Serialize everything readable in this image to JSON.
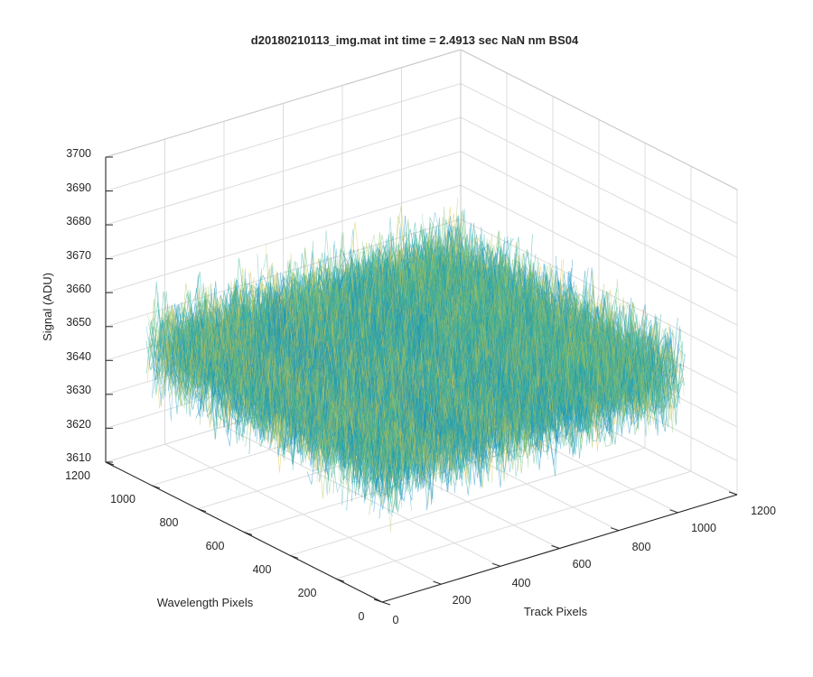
{
  "chart_data": {
    "type": "surface",
    "title": "d20180210113_img.mat int time = 2.4913 sec  NaN nm BS04",
    "xlabel": "Track Pixels",
    "ylabel": "Wavelength Pixels",
    "zlabel": "Signal (ADU)",
    "xlim": [
      0,
      1200
    ],
    "ylim": [
      0,
      1200
    ],
    "zlim": [
      3610,
      3700
    ],
    "x_ticks": [
      "0",
      "200",
      "400",
      "600",
      "800",
      "1000",
      "1200"
    ],
    "y_ticks": [
      "0",
      "200",
      "400",
      "600",
      "800",
      "1000",
      "1200"
    ],
    "z_ticks": [
      "3610",
      "3620",
      "3630",
      "3640",
      "3650",
      "3660",
      "3670",
      "3680",
      "3690",
      "3700"
    ],
    "surface": {
      "x_range": [
        0,
        1024
      ],
      "y_range": [
        0,
        1024
      ],
      "mean_signal": 3650,
      "noise_min": 3612,
      "noise_max": 3688
    },
    "grid": true,
    "colormap": [
      "#1a8fc7",
      "#1fa3b8",
      "#2bb09f",
      "#4fb887",
      "#7fbf6e",
      "#b3c45a",
      "#e0c44a"
    ]
  }
}
